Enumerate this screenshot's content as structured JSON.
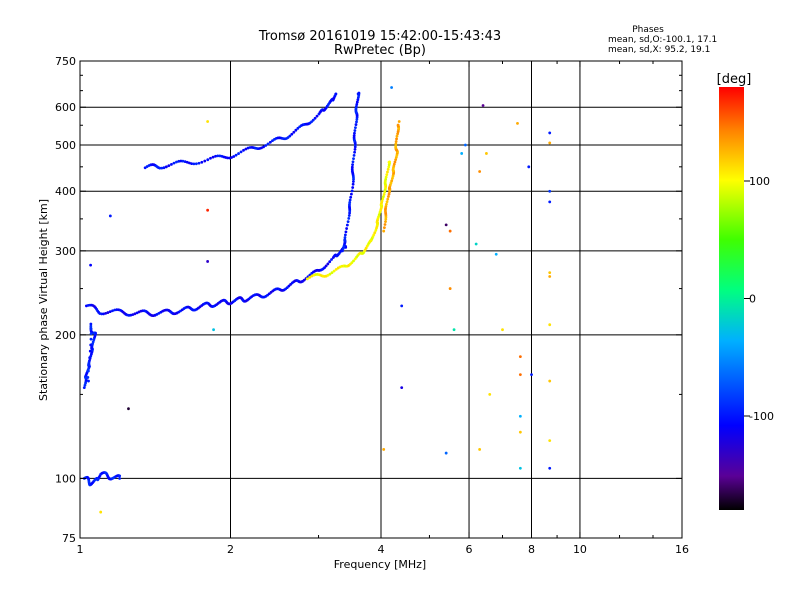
{
  "title": "Tromsø 20161019 15:42:00-15:43:43",
  "subtitle": "RwPretec (Bp)",
  "phase_info": {
    "heading": "Phases",
    "line_o": "mean, sd,O:-100.1, 17.1",
    "line_x": "mean, sd,X:  95.2, 19.1"
  },
  "chart_data": {
    "type": "scatter",
    "xlabel": "Frequency [MHz]",
    "ylabel": "Stationary phase Virtual Height [km]",
    "xscale": "log",
    "yscale": "log",
    "xlim": [
      1,
      16
    ],
    "ylim": [
      75,
      750
    ],
    "x_gridlines": [
      2,
      4,
      6,
      8,
      10
    ],
    "y_gridlines": [
      100,
      200,
      300,
      400,
      500,
      600
    ],
    "x_tick_labels": [
      "1",
      "2",
      "4",
      "6",
      "8",
      "10",
      "16"
    ],
    "y_tick_labels": [
      "75",
      "100",
      "200",
      "300",
      "400",
      "500",
      "600",
      "750"
    ],
    "colorbar": {
      "label": "[deg]",
      "range": [
        -180,
        180
      ],
      "tick_labels": [
        "100",
        "0",
        "-100"
      ],
      "tick_values": [
        100,
        0,
        -100
      ]
    },
    "traces": [
      {
        "f": [
          1.03,
          1.1,
          1.2,
          1.3,
          1.4,
          1.5,
          1.6,
          1.7,
          1.8,
          1.9,
          2.0,
          2.1,
          2.2,
          2.35,
          2.5,
          2.65,
          2.8,
          3.0,
          3.2,
          3.3,
          3.4
        ],
        "h": [
          230,
          224,
          223,
          222,
          222,
          223,
          225,
          228,
          231,
          233,
          235,
          237,
          239,
          243,
          248,
          255,
          262,
          272,
          288,
          298,
          305
        ],
        "phase": -110
      },
      {
        "f": [
          1.35,
          1.45,
          1.6,
          1.8,
          2.0,
          2.2,
          2.4,
          2.6,
          2.8,
          3.0,
          3.1,
          3.2,
          3.25
        ],
        "h": [
          448,
          452,
          458,
          465,
          475,
          490,
          505,
          522,
          548,
          578,
          600,
          620,
          640
        ],
        "phase": -105
      },
      {
        "f": [
          3.35,
          3.4,
          3.45,
          3.5,
          3.52,
          3.54,
          3.56,
          3.58,
          3.6
        ],
        "h": [
          300,
          320,
          360,
          400,
          450,
          500,
          550,
          600,
          640
        ],
        "phase": -102
      },
      {
        "f": [
          2.85,
          3.1,
          3.35,
          3.55,
          3.7,
          3.8,
          3.9,
          3.95,
          4.0,
          4.05,
          4.1,
          4.15
        ],
        "h": [
          262,
          268,
          276,
          288,
          300,
          312,
          330,
          350,
          370,
          392,
          425,
          460
        ],
        "phase": 100
      },
      {
        "f": [
          4.05,
          4.1,
          4.15,
          4.2,
          4.25,
          4.3,
          4.3,
          4.35
        ],
        "h": [
          330,
          370,
          400,
          420,
          450,
          480,
          520,
          560
        ],
        "phase": 130
      },
      {
        "f": [
          1.02,
          1.03,
          1.04,
          1.05,
          1.06,
          1.07,
          1.05,
          1.04
        ],
        "h": [
          155,
          165,
          170,
          180,
          190,
          200,
          210,
          160
        ],
        "phase": -100
      },
      {
        "f": [
          1.02,
          1.05,
          1.08,
          1.1,
          1.15,
          1.2
        ],
        "h": [
          100,
          98,
          99,
          102,
          101,
          100
        ],
        "phase": -100
      }
    ],
    "scattered_points": [
      {
        "f": 1.8,
        "h": 560,
        "phase": 110
      },
      {
        "f": 1.8,
        "h": 365,
        "phase": 170
      },
      {
        "f": 1.15,
        "h": 355,
        "phase": -100
      },
      {
        "f": 1.05,
        "h": 280,
        "phase": -110
      },
      {
        "f": 1.8,
        "h": 285,
        "phase": -130
      },
      {
        "f": 1.85,
        "h": 205,
        "phase": -30
      },
      {
        "f": 1.25,
        "h": 140,
        "phase": -170
      },
      {
        "f": 1.1,
        "h": 85,
        "phase": 110
      },
      {
        "f": 4.4,
        "h": 230,
        "phase": -100
      },
      {
        "f": 4.4,
        "h": 155,
        "phase": -120
      },
      {
        "f": 4.05,
        "h": 115,
        "phase": 130
      },
      {
        "f": 4.2,
        "h": 660,
        "phase": -60
      },
      {
        "f": 5.4,
        "h": 340,
        "phase": -160
      },
      {
        "f": 5.5,
        "h": 330,
        "phase": 150
      },
      {
        "f": 5.5,
        "h": 250,
        "phase": 140
      },
      {
        "f": 5.6,
        "h": 205,
        "phase": -10
      },
      {
        "f": 5.8,
        "h": 480,
        "phase": -40
      },
      {
        "f": 5.9,
        "h": 500,
        "phase": -70
      },
      {
        "f": 5.4,
        "h": 113,
        "phase": -70
      },
      {
        "f": 6.2,
        "h": 310,
        "phase": -20
      },
      {
        "f": 6.3,
        "h": 440,
        "phase": 140
      },
      {
        "f": 6.4,
        "h": 605,
        "phase": -150
      },
      {
        "f": 6.5,
        "h": 480,
        "phase": 120
      },
      {
        "f": 6.8,
        "h": 295,
        "phase": -40
      },
      {
        "f": 7.0,
        "h": 205,
        "phase": 110
      },
      {
        "f": 6.6,
        "h": 150,
        "phase": 110
      },
      {
        "f": 6.3,
        "h": 115,
        "phase": 120
      },
      {
        "f": 7.5,
        "h": 555,
        "phase": 130
      },
      {
        "f": 7.6,
        "h": 180,
        "phase": 150
      },
      {
        "f": 7.6,
        "h": 165,
        "phase": 150
      },
      {
        "f": 7.6,
        "h": 135,
        "phase": -40
      },
      {
        "f": 7.6,
        "h": 125,
        "phase": 120
      },
      {
        "f": 7.6,
        "h": 105,
        "phase": -30
      },
      {
        "f": 7.9,
        "h": 450,
        "phase": -100
      },
      {
        "f": 8.0,
        "h": 165,
        "phase": -100
      },
      {
        "f": 8.7,
        "h": 530,
        "phase": -100
      },
      {
        "f": 8.7,
        "h": 505,
        "phase": 130
      },
      {
        "f": 8.7,
        "h": 400,
        "phase": -90
      },
      {
        "f": 8.7,
        "h": 380,
        "phase": -100
      },
      {
        "f": 8.7,
        "h": 270,
        "phase": 120
      },
      {
        "f": 8.7,
        "h": 265,
        "phase": 130
      },
      {
        "f": 8.7,
        "h": 210,
        "phase": 110
      },
      {
        "f": 8.7,
        "h": 160,
        "phase": 120
      },
      {
        "f": 8.7,
        "h": 120,
        "phase": 110
      },
      {
        "f": 8.7,
        "h": 105,
        "phase": -100
      }
    ]
  }
}
